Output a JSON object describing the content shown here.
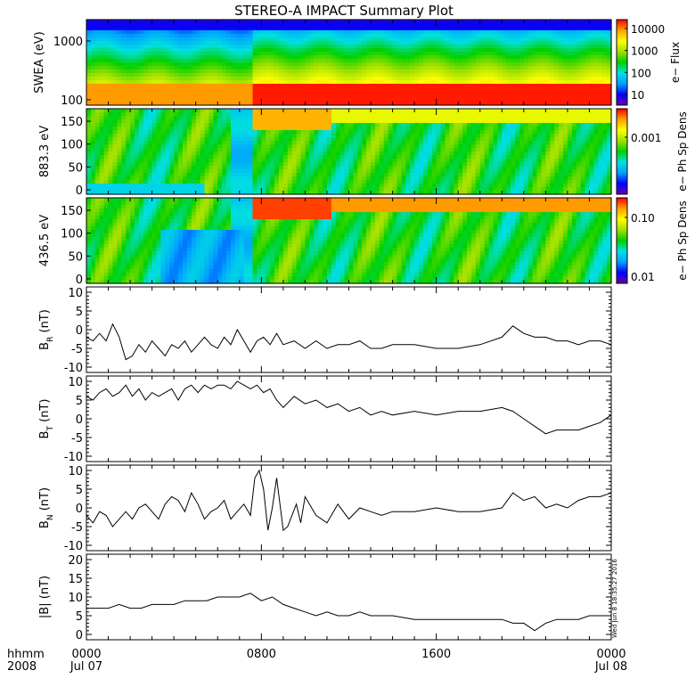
{
  "title": "STEREO-A IMPACT Summary Plot",
  "stamp": "Wed Jun  8 18:35:27 2016",
  "time_axis": {
    "row1_labels": [
      "0000",
      "0800",
      "1600",
      "0000"
    ],
    "row2_labels": [
      "Jul 07",
      "",
      "",
      "Jul 08"
    ],
    "left_label_1": "hhmm",
    "left_label_2": "2008",
    "range_hours": [
      0,
      24
    ]
  },
  "spectrograms": [
    {
      "id": "swea",
      "ylabel": "SWEA (eV)",
      "yticks": [
        "1000",
        "100"
      ],
      "cbar_label": "e− Flux",
      "cbar_ticks": [
        "10000",
        "1000",
        "100",
        "10"
      ],
      "cbar_scale": "log"
    },
    {
      "id": "pad883",
      "ylabel": "883.3 eV",
      "yticks": [
        "150",
        "100",
        "50",
        "0"
      ],
      "cbar_label": "e− Ph Sp Dens",
      "cbar_ticks": [
        "0.001"
      ],
      "cbar_scale": "log"
    },
    {
      "id": "pad436",
      "ylabel": "436.5 eV",
      "yticks": [
        "150",
        "100",
        "50",
        "0"
      ],
      "cbar_label": "e− Ph Sp Dens",
      "cbar_ticks": [
        "0.10",
        "0.01"
      ],
      "cbar_scale": "log"
    }
  ],
  "colors": {
    "colormap": [
      "#6a00a8",
      "#0000ff",
      "#00a0ff",
      "#00e0e0",
      "#00d000",
      "#a0e000",
      "#ffff00",
      "#ffa000",
      "#ff0000"
    ],
    "line": "#000000",
    "frame": "#000000"
  },
  "chart_data": {
    "type": "line",
    "x_unit": "hours since 2008-07-07 00:00",
    "series": [
      {
        "name": "BR",
        "ylabel_main": "B",
        "ylabel_sub": "R",
        "ylabel_unit": " (nT)",
        "ylim": [
          -10,
          10
        ],
        "yticks": [
          "10",
          "5",
          "0",
          "-5",
          "-10"
        ],
        "x": [
          0,
          0.3,
          0.6,
          0.9,
          1.2,
          1.5,
          1.8,
          2.1,
          2.4,
          2.7,
          3.0,
          3.3,
          3.6,
          3.9,
          4.2,
          4.5,
          4.8,
          5.1,
          5.4,
          5.7,
          6.0,
          6.3,
          6.6,
          6.9,
          7.2,
          7.5,
          7.8,
          8.1,
          8.4,
          8.7,
          9.0,
          9.5,
          10.0,
          10.5,
          11.0,
          11.5,
          12.0,
          12.5,
          13.0,
          13.5,
          14.0,
          15.0,
          16.0,
          17.0,
          18.0,
          19.0,
          19.5,
          20.0,
          20.5,
          21.0,
          21.5,
          22.0,
          22.5,
          23.0,
          23.5,
          24.0
        ],
        "y": [
          -2,
          -3,
          -1,
          -3,
          1.5,
          -2,
          -8,
          -7,
          -4,
          -6,
          -3,
          -5,
          -7,
          -4,
          -5,
          -3,
          -6,
          -4,
          -2,
          -4,
          -5,
          -2,
          -4,
          0,
          -3,
          -6,
          -3,
          -2,
          -4,
          -1,
          -4,
          -3,
          -5,
          -3,
          -5,
          -4,
          -4,
          -3,
          -5,
          -5,
          -4,
          -4,
          -5,
          -5,
          -4,
          -2,
          1,
          -1,
          -2,
          -2,
          -3,
          -3,
          -4,
          -3,
          -3,
          -4
        ]
      },
      {
        "name": "BT",
        "ylabel_main": "B",
        "ylabel_sub": "T",
        "ylabel_unit": " (nT)",
        "ylim": [
          -10,
          10
        ],
        "yticks": [
          "10",
          "5",
          "0",
          "-5",
          "-10"
        ],
        "x": [
          0,
          0.3,
          0.6,
          0.9,
          1.2,
          1.5,
          1.8,
          2.1,
          2.4,
          2.7,
          3.0,
          3.3,
          3.6,
          3.9,
          4.2,
          4.5,
          4.8,
          5.1,
          5.4,
          5.7,
          6.0,
          6.3,
          6.6,
          6.9,
          7.2,
          7.5,
          7.8,
          8.1,
          8.4,
          8.7,
          9.0,
          9.5,
          10.0,
          10.5,
          11.0,
          11.5,
          12.0,
          12.5,
          13.0,
          13.5,
          14.0,
          15.0,
          16.0,
          17.0,
          18.0,
          19.0,
          19.5,
          20.0,
          20.5,
          21.0,
          21.5,
          22.0,
          22.5,
          23.0,
          23.5,
          24.0
        ],
        "y": [
          6,
          5,
          7,
          8,
          6,
          7,
          9,
          6,
          8,
          5,
          7,
          6,
          7,
          8,
          5,
          8,
          9,
          7,
          9,
          8,
          9,
          9,
          8,
          10,
          9,
          8,
          9,
          7,
          8,
          5,
          3,
          6,
          4,
          5,
          3,
          4,
          2,
          3,
          1,
          2,
          1,
          2,
          1,
          2,
          2,
          3,
          2,
          0,
          -2,
          -4,
          -3,
          -3,
          -3,
          -2,
          -1,
          1
        ]
      },
      {
        "name": "BN",
        "ylabel_main": "B",
        "ylabel_sub": "N",
        "ylabel_unit": " (nT)",
        "ylim": [
          -10,
          10
        ],
        "yticks": [
          "10",
          "5",
          "0",
          "-5",
          "-10"
        ],
        "x": [
          0,
          0.3,
          0.6,
          0.9,
          1.2,
          1.5,
          1.8,
          2.1,
          2.4,
          2.7,
          3.0,
          3.3,
          3.6,
          3.9,
          4.2,
          4.5,
          4.8,
          5.1,
          5.4,
          5.7,
          6.0,
          6.3,
          6.6,
          6.9,
          7.2,
          7.5,
          7.7,
          7.9,
          8.1,
          8.3,
          8.5,
          8.7,
          9.0,
          9.2,
          9.4,
          9.6,
          9.8,
          10.0,
          10.5,
          11.0,
          11.5,
          12.0,
          12.5,
          13.0,
          13.5,
          14.0,
          15.0,
          16.0,
          17.0,
          18.0,
          19.0,
          19.5,
          20.0,
          20.5,
          21.0,
          21.5,
          22.0,
          22.5,
          23.0,
          23.5,
          24.0
        ],
        "y": [
          -2,
          -4,
          -1,
          -2,
          -5,
          -3,
          -1,
          -3,
          0,
          1,
          -1,
          -3,
          1,
          3,
          2,
          -1,
          4,
          1,
          -3,
          -1,
          0,
          2,
          -3,
          -1,
          1,
          -2,
          8,
          10,
          5,
          -6,
          0,
          8,
          -6,
          -5,
          -2,
          1,
          -4,
          3,
          -2,
          -4,
          1,
          -3,
          0,
          -1,
          -2,
          -1,
          -1,
          0,
          -1,
          -1,
          0,
          4,
          2,
          3,
          0,
          1,
          0,
          2,
          3,
          3,
          4
        ]
      },
      {
        "name": "|B|",
        "ylabel_main": "|B|",
        "ylabel_sub": "",
        "ylabel_unit": " (nT)",
        "ylim": [
          0,
          20
        ],
        "yticks": [
          "20",
          "15",
          "10",
          "5",
          "0"
        ],
        "x": [
          0,
          0.5,
          1.0,
          1.5,
          2.0,
          2.5,
          3.0,
          3.5,
          4.0,
          4.5,
          5.0,
          5.5,
          6.0,
          6.5,
          7.0,
          7.5,
          8.0,
          8.5,
          9.0,
          9.5,
          10.0,
          10.5,
          11.0,
          11.5,
          12.0,
          12.5,
          13.0,
          13.5,
          14.0,
          15.0,
          16.0,
          17.0,
          18.0,
          19.0,
          19.5,
          20.0,
          20.5,
          21.0,
          21.5,
          22.0,
          22.5,
          23.0,
          23.5,
          24.0
        ],
        "y": [
          7,
          7,
          7,
          8,
          7,
          7,
          8,
          8,
          8,
          9,
          9,
          9,
          10,
          10,
          10,
          11,
          9,
          10,
          8,
          7,
          6,
          5,
          6,
          5,
          5,
          6,
          5,
          5,
          5,
          4,
          4,
          4,
          4,
          4,
          3,
          3,
          1,
          3,
          4,
          4,
          4,
          5,
          5,
          5
        ]
      }
    ]
  }
}
